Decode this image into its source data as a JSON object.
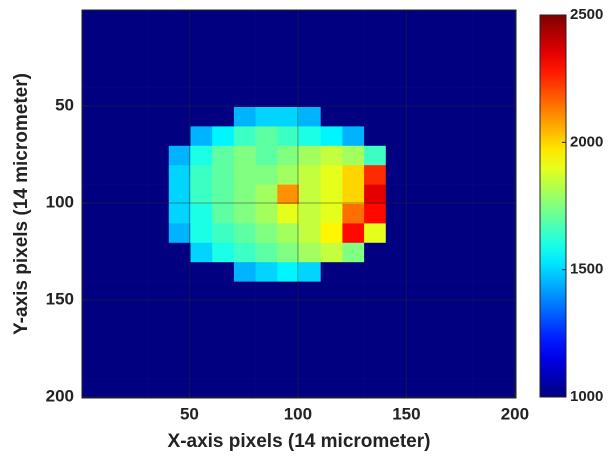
{
  "chart_data": {
    "type": "heatmap",
    "xlabel": "X-axis pixels (14 micrometer)",
    "ylabel": "Y-axis pixels (14 micrometer)",
    "x": [
      5.5,
      15.5,
      25.5,
      35.5,
      45.5,
      55.5,
      65.5,
      75.5,
      85.5,
      95.5,
      105.5,
      115.5,
      125.5,
      135.5,
      145.5,
      155.5,
      165.5,
      175.5,
      185.5,
      195.5
    ],
    "y": [
      5.5,
      15.5,
      25.5,
      35.5,
      45.5,
      55.5,
      65.5,
      75.5,
      85.5,
      95.5,
      105.5,
      115.5,
      125.5,
      135.5,
      145.5,
      155.5,
      165.5,
      175.5,
      185.5,
      195.5
    ],
    "z": [
      [
        1000,
        1000,
        1000,
        1000,
        1000,
        1000,
        1000,
        1000,
        1000,
        1000,
        1000,
        1000,
        1000,
        1000,
        1000,
        1000,
        1000,
        1000,
        1000,
        1000
      ],
      [
        1000,
        1000,
        1000,
        1000,
        1000,
        1000,
        1000,
        1000,
        1000,
        1000,
        1000,
        1000,
        1000,
        1000,
        1000,
        1000,
        1000,
        1000,
        1000,
        1000
      ],
      [
        1000,
        1000,
        1000,
        1000,
        1000,
        1000,
        1000,
        1000,
        1000,
        1000,
        1000,
        1000,
        1000,
        1000,
        1000,
        1000,
        1000,
        1000,
        1000,
        1000
      ],
      [
        1000,
        1000,
        1000,
        1000,
        1000,
        1000,
        1000,
        1000,
        1000,
        1000,
        1000,
        1000,
        1000,
        1000,
        1000,
        1000,
        1000,
        1000,
        1000,
        1000
      ],
      [
        1000,
        1000,
        1000,
        1000,
        1000,
        1000,
        1000,
        1000,
        1000,
        1000,
        1000,
        1000,
        1000,
        1000,
        1000,
        1000,
        1000,
        1000,
        1000,
        1000
      ],
      [
        1000,
        1000,
        1000,
        1000,
        1000,
        1000,
        1000,
        1450,
        1500,
        1500,
        1450,
        1000,
        1000,
        1000,
        1000,
        1000,
        1000,
        1000,
        1000,
        1000
      ],
      [
        1000,
        1000,
        1000,
        1000,
        1000,
        1450,
        1550,
        1650,
        1700,
        1650,
        1600,
        1550,
        1450,
        1000,
        1000,
        1000,
        1000,
        1000,
        1000,
        1000
      ],
      [
        1000,
        1000,
        1000,
        1000,
        1450,
        1600,
        1700,
        1750,
        1700,
        1750,
        1800,
        1850,
        1800,
        1650,
        1000,
        1000,
        1000,
        1000,
        1000,
        1000
      ],
      [
        1000,
        1000,
        1000,
        1000,
        1500,
        1650,
        1700,
        1750,
        1750,
        1800,
        1850,
        1900,
        2000,
        2250,
        1000,
        1000,
        1000,
        1000,
        1000,
        1000
      ],
      [
        1000,
        1000,
        1000,
        1000,
        1500,
        1650,
        1700,
        1750,
        1800,
        2100,
        1850,
        1900,
        2000,
        2350,
        1000,
        1000,
        1000,
        1000,
        1000,
        1000
      ],
      [
        1000,
        1000,
        1000,
        1000,
        1500,
        1600,
        1700,
        1750,
        1800,
        1900,
        1850,
        1900,
        2150,
        2300,
        1000,
        1000,
        1000,
        1000,
        1000,
        1000
      ],
      [
        1000,
        1000,
        1000,
        1000,
        1450,
        1600,
        1650,
        1700,
        1750,
        1800,
        1850,
        1950,
        2300,
        1900,
        1000,
        1000,
        1000,
        1000,
        1000,
        1000
      ],
      [
        1000,
        1000,
        1000,
        1000,
        1000,
        1500,
        1600,
        1650,
        1700,
        1750,
        1800,
        1850,
        1750,
        1000,
        1000,
        1000,
        1000,
        1000,
        1000,
        1000
      ],
      [
        1000,
        1000,
        1000,
        1000,
        1000,
        1000,
        1000,
        1450,
        1500,
        1550,
        1500,
        1000,
        1000,
        1000,
        1000,
        1000,
        1000,
        1000,
        1000,
        1000
      ],
      [
        1000,
        1000,
        1000,
        1000,
        1000,
        1000,
        1000,
        1000,
        1000,
        1000,
        1000,
        1000,
        1000,
        1000,
        1000,
        1000,
        1000,
        1000,
        1000,
        1000
      ],
      [
        1000,
        1000,
        1000,
        1000,
        1000,
        1000,
        1000,
        1000,
        1000,
        1000,
        1000,
        1000,
        1000,
        1000,
        1000,
        1000,
        1000,
        1000,
        1000,
        1000
      ],
      [
        1000,
        1000,
        1000,
        1000,
        1000,
        1000,
        1000,
        1000,
        1000,
        1000,
        1000,
        1000,
        1000,
        1000,
        1000,
        1000,
        1000,
        1000,
        1000,
        1000
      ],
      [
        1000,
        1000,
        1000,
        1000,
        1000,
        1000,
        1000,
        1000,
        1000,
        1000,
        1000,
        1000,
        1000,
        1000,
        1000,
        1000,
        1000,
        1000,
        1000,
        1000
      ],
      [
        1000,
        1000,
        1000,
        1000,
        1000,
        1000,
        1000,
        1000,
        1000,
        1000,
        1000,
        1000,
        1000,
        1000,
        1000,
        1000,
        1000,
        1000,
        1000,
        1000
      ],
      [
        1000,
        1000,
        1000,
        1000,
        1000,
        1000,
        1000,
        1000,
        1000,
        1000,
        1000,
        1000,
        1000,
        1000,
        1000,
        1000,
        1000,
        1000,
        1000,
        1000
      ]
    ],
    "xlim": [
      0.5,
      200.5
    ],
    "ylim": [
      0.5,
      200.5
    ],
    "y_reversed": true,
    "xticks": [
      50,
      100,
      150,
      200
    ],
    "yticks": [
      50,
      100,
      150,
      200
    ],
    "clim": [
      1000,
      2500
    ],
    "cticks": [
      1000,
      1500,
      2000,
      2500
    ],
    "colormap": "jet",
    "grid": true
  }
}
